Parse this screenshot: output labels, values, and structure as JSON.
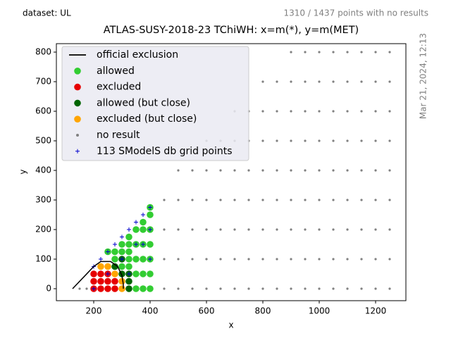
{
  "chart_data": {
    "type": "scatter",
    "title": "ATLAS-SUSY-2018-23 TChiWH: x=m(*), y=m(MET)",
    "dataset_label": "dataset: UL",
    "status_note": "1310 / 1437 points with no results",
    "timestamp": "Mar 21, 2024, 12:13",
    "x_label": "x",
    "y_label": "y",
    "xlim": [
      67.5,
      1307.5
    ],
    "ylim": [
      -40.5,
      828.6
    ],
    "xticks": [
      200,
      400,
      600,
      800,
      1000,
      1200
    ],
    "yticks": [
      0,
      100,
      200,
      300,
      400,
      500,
      600,
      700,
      800
    ],
    "legend_position": "upper left",
    "series": [
      {
        "name": "official exclusion",
        "color": "#000000",
        "marker": "line",
        "x": [
          125,
          200,
          225,
          260,
          285,
          300,
          305,
          305
        ],
        "y": [
          0,
          75,
          92,
          92,
          75,
          45,
          15,
          0
        ]
      },
      {
        "name": "allowed",
        "color": "#32cd32",
        "marker": "dot",
        "x": [
          250,
          275,
          275,
          300,
          300,
          300,
          325,
          325,
          325,
          325,
          325,
          350,
          350,
          350,
          350,
          350,
          375,
          375,
          375,
          375,
          375,
          375,
          400,
          400,
          400,
          400,
          400,
          400,
          400
        ],
        "y": [
          125,
          100,
          125,
          75,
          125,
          150,
          75,
          100,
          125,
          150,
          175,
          0,
          50,
          100,
          150,
          200,
          0,
          50,
          100,
          150,
          200,
          225,
          0,
          50,
          100,
          150,
          200,
          250,
          275
        ]
      },
      {
        "name": "excluded",
        "color": "#e60000",
        "marker": "dot",
        "x": [
          200,
          200,
          200,
          225,
          225,
          225,
          250,
          250,
          250,
          275,
          275
        ],
        "y": [
          0,
          25,
          50,
          0,
          25,
          50,
          0,
          25,
          50,
          0,
          25
        ]
      },
      {
        "name": "allowed (but close)",
        "color": "#006400",
        "marker": "dot",
        "x": [
          275,
          300,
          300,
          325,
          325,
          325
        ],
        "y": [
          75,
          50,
          100,
          0,
          25,
          50
        ]
      },
      {
        "name": "excluded (but close)",
        "color": "#ffa500",
        "marker": "dot",
        "x": [
          225,
          250,
          275,
          300,
          300
        ],
        "y": [
          75,
          75,
          50,
          0,
          25
        ]
      },
      {
        "name": "no result",
        "color": "#808080",
        "marker": "small",
        "x": [
          150,
          175,
          450,
          450,
          450,
          450,
          500,
          500,
          500,
          500,
          500,
          550,
          550,
          550,
          550,
          550,
          600,
          600,
          600,
          600,
          600,
          600,
          650,
          650,
          650,
          650,
          650,
          650,
          700,
          700,
          700,
          700,
          700,
          700,
          700,
          750,
          750,
          750,
          750,
          750,
          750,
          750,
          800,
          800,
          800,
          800,
          800,
          800,
          800,
          800,
          850,
          850,
          850,
          850,
          850,
          850,
          850,
          850,
          900,
          900,
          900,
          900,
          900,
          900,
          900,
          900,
          900,
          950,
          950,
          950,
          950,
          950,
          950,
          950,
          950,
          950,
          1000,
          1000,
          1000,
          1000,
          1000,
          1000,
          1000,
          1000,
          1000,
          1050,
          1050,
          1050,
          1050,
          1050,
          1050,
          1050,
          1050,
          1050,
          1100,
          1100,
          1100,
          1100,
          1100,
          1100,
          1100,
          1100,
          1100,
          1150,
          1150,
          1150,
          1150,
          1150,
          1150,
          1150,
          1150,
          1150,
          1200,
          1200,
          1200,
          1200,
          1200,
          1200,
          1200,
          1200,
          1200,
          1250,
          1250,
          1250,
          1250,
          1250,
          1250,
          1250,
          1250,
          1250
        ],
        "y": [
          0,
          0,
          0,
          100,
          200,
          300,
          0,
          100,
          200,
          300,
          400,
          0,
          100,
          200,
          300,
          400,
          0,
          100,
          200,
          300,
          400,
          500,
          0,
          100,
          200,
          300,
          400,
          500,
          0,
          100,
          200,
          300,
          400,
          500,
          600,
          0,
          100,
          200,
          300,
          400,
          500,
          600,
          0,
          100,
          200,
          300,
          400,
          500,
          600,
          700,
          0,
          100,
          200,
          300,
          400,
          500,
          600,
          700,
          0,
          100,
          200,
          300,
          400,
          500,
          600,
          700,
          800,
          0,
          100,
          200,
          300,
          400,
          500,
          600,
          700,
          800,
          0,
          100,
          200,
          300,
          400,
          500,
          600,
          700,
          800,
          0,
          100,
          200,
          300,
          400,
          500,
          600,
          700,
          800,
          0,
          100,
          200,
          300,
          400,
          500,
          600,
          700,
          800,
          0,
          100,
          200,
          300,
          400,
          500,
          600,
          700,
          800,
          0,
          100,
          200,
          300,
          400,
          500,
          600,
          700,
          800,
          0,
          100,
          200,
          300,
          400,
          500,
          600,
          700,
          800
        ]
      },
      {
        "name": "113 SModelS db grid points",
        "color": "#0000cd",
        "marker": "plus",
        "x": [
          200,
          225,
          250,
          275,
          300,
          325,
          350,
          375,
          400,
          200,
          250,
          300,
          350,
          400,
          400,
          325,
          375
        ],
        "y": [
          75,
          100,
          125,
          150,
          175,
          200,
          225,
          250,
          275,
          0,
          50,
          100,
          150,
          200,
          100,
          50,
          150
        ]
      }
    ]
  }
}
